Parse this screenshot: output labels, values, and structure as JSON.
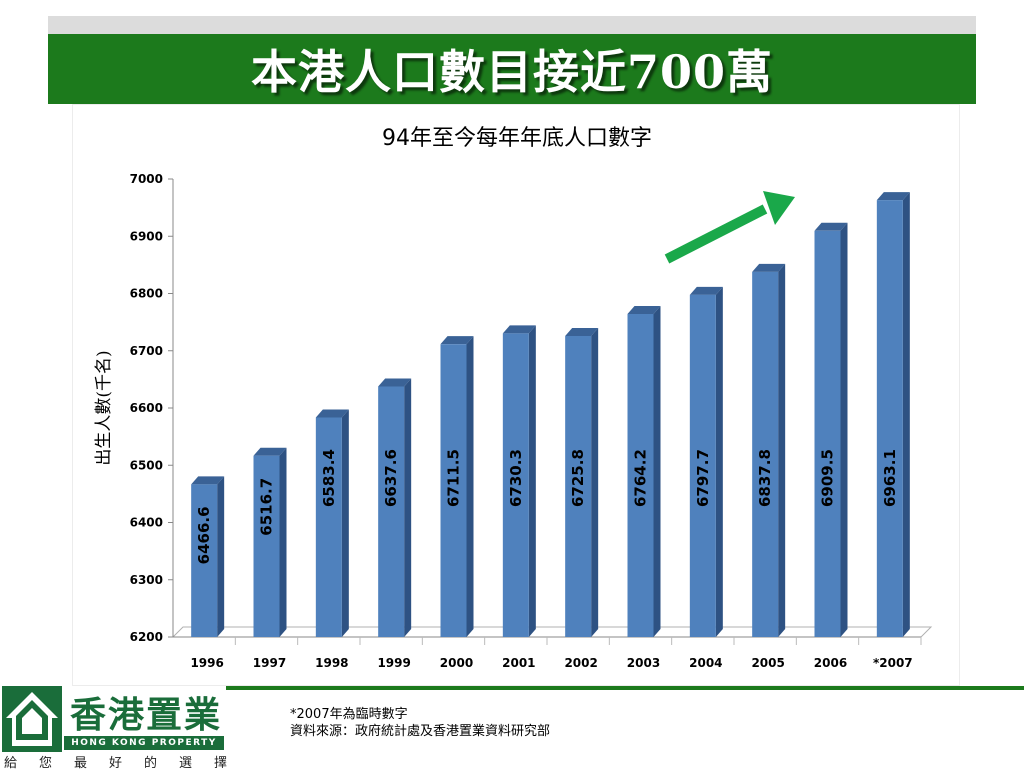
{
  "banner": {
    "title": "本港人口數目接近700萬"
  },
  "chart_data": {
    "type": "bar",
    "title": "94年至今每年年底人口數字",
    "ylabel": "出生人數(千名)",
    "xlabel": "",
    "categories": [
      "1996",
      "1997",
      "1998",
      "1999",
      "2000",
      "2001",
      "2002",
      "2003",
      "2004",
      "2005",
      "2006",
      "*2007"
    ],
    "values": [
      6466.6,
      6516.7,
      6583.4,
      6637.6,
      6711.5,
      6730.3,
      6725.8,
      6764.2,
      6797.7,
      6837.8,
      6909.5,
      6963.1
    ],
    "value_labels": [
      "6466.6",
      "6516.7",
      "6583.4",
      "6637.6",
      "6711.5",
      "6730.3",
      "6725.8",
      "6764.2",
      "6797.7",
      "6837.8",
      "6909.5",
      "6963.1"
    ],
    "ylim": [
      6200,
      7000
    ],
    "yticks": [
      "6200",
      "6300",
      "6400",
      "6500",
      "6600",
      "6700",
      "6800",
      "6900",
      "7000"
    ],
    "grid": false,
    "bar_color": "#4f81bd",
    "arrow_color": "#1aa84a"
  },
  "footer": {
    "note": "*2007年為臨時數字",
    "source": "資料來源：政府統計處及香港置業資料研究部"
  },
  "logo": {
    "name_cn": "香港置業",
    "name_en": "HONG KONG PROPERTY",
    "slogan": "給您最好的選擇",
    "color": "#1a6d3a"
  }
}
